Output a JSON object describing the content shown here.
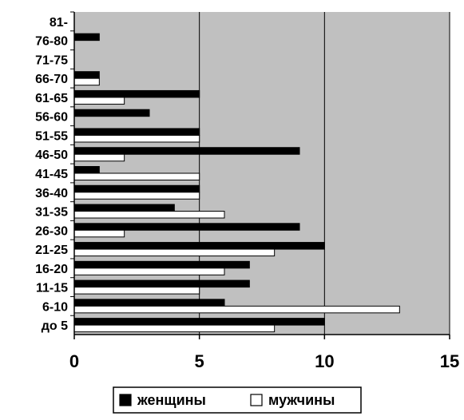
{
  "chart_data": {
    "type": "bar",
    "orientation": "horizontal",
    "categories": [
      "до 5",
      "6-10",
      "11-15",
      "16-20",
      "21-25",
      "26-30",
      "31-35",
      "36-40",
      "41-45",
      "46-50",
      "51-55",
      "56-60",
      "61-65",
      "66-70",
      "71-75",
      "76-80",
      "81-"
    ],
    "series": [
      {
        "name": "женщины",
        "color": "#000000",
        "values": [
          10,
          6,
          7,
          7,
          10,
          9,
          4,
          5,
          1,
          9,
          5,
          3,
          5,
          1,
          0,
          1,
          0
        ]
      },
      {
        "name": "мужчины",
        "color": "#ffffff",
        "values": [
          8,
          13,
          5,
          6,
          8,
          2,
          6,
          5,
          5,
          2,
          5,
          0,
          2,
          1,
          0,
          0,
          0
        ]
      }
    ],
    "xlim": [
      0,
      15
    ],
    "xticks": [
      0,
      5,
      10,
      15
    ],
    "grid": true,
    "legend_position": "bottom",
    "plot_background": "#c0c0c0"
  }
}
